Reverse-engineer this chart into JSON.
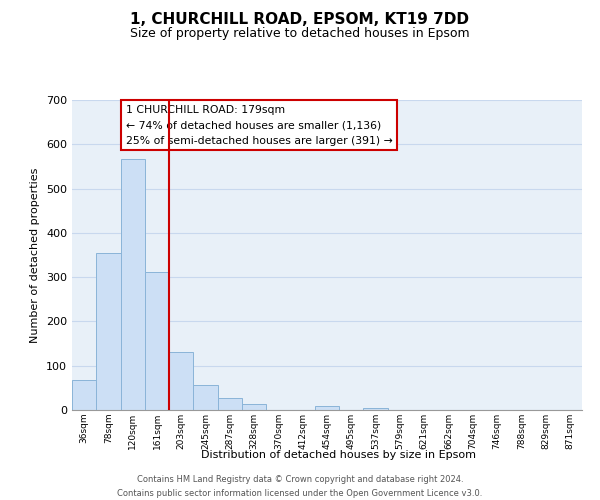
{
  "title": "1, CHURCHILL ROAD, EPSOM, KT19 7DD",
  "subtitle": "Size of property relative to detached houses in Epsom",
  "xlabel": "Distribution of detached houses by size in Epsom",
  "ylabel": "Number of detached properties",
  "bar_labels": [
    "36sqm",
    "78sqm",
    "120sqm",
    "161sqm",
    "203sqm",
    "245sqm",
    "287sqm",
    "328sqm",
    "370sqm",
    "412sqm",
    "454sqm",
    "495sqm",
    "537sqm",
    "579sqm",
    "621sqm",
    "662sqm",
    "704sqm",
    "746sqm",
    "788sqm",
    "829sqm",
    "871sqm"
  ],
  "bar_values": [
    68,
    354,
    567,
    312,
    132,
    57,
    27,
    14,
    0,
    0,
    10,
    0,
    4,
    0,
    0,
    0,
    0,
    0,
    0,
    0,
    0
  ],
  "bar_color": "#ccdff5",
  "bar_edge_color": "#8ab4d8",
  "property_line_color": "#cc0000",
  "ylim": [
    0,
    700
  ],
  "yticks": [
    0,
    100,
    200,
    300,
    400,
    500,
    600,
    700
  ],
  "annotation_title": "1 CHURCHILL ROAD: 179sqm",
  "annotation_line1": "← 74% of detached houses are smaller (1,136)",
  "annotation_line2": "25% of semi-detached houses are larger (391) →",
  "annotation_box_facecolor": "#ffffff",
  "annotation_box_edgecolor": "#cc0000",
  "footer_line1": "Contains HM Land Registry data © Crown copyright and database right 2024.",
  "footer_line2": "Contains public sector information licensed under the Open Government Licence v3.0.",
  "grid_color": "#c8d8ee",
  "background_color": "#e8f0f8"
}
